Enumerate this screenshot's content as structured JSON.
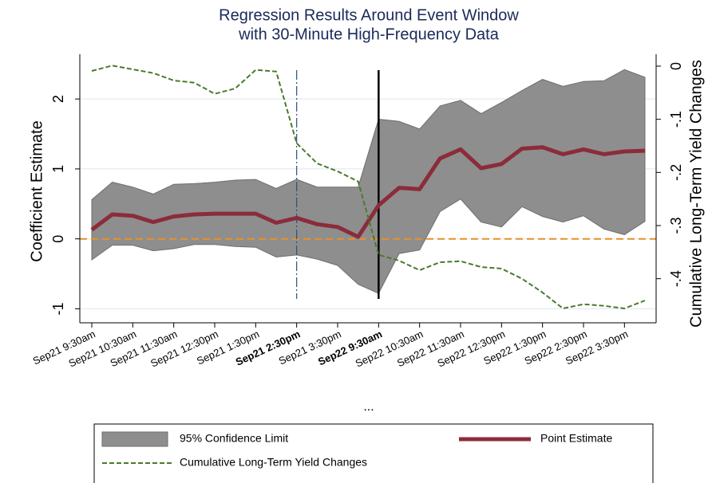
{
  "chart_data": {
    "type": "line",
    "title": [
      "Regression Results Around Event Window",
      "with 30-Minute High-Frequency Data"
    ],
    "y_label": "Coefficient Estimate",
    "y2_label": "Cumulative Long-Term Yield Changes",
    "annotation": "...",
    "categories": [
      "Sep21 9:30am",
      null,
      "Sep21 10:30am",
      null,
      "Sep21 11:30am",
      null,
      "Sep21 12:30pm",
      null,
      "Sep21 1:30pm",
      null,
      "Sep21 2:30pm",
      null,
      "Sep21 3:30pm",
      null,
      "Sep22 9:30am",
      null,
      "Sep22 10:30am",
      null,
      "Sep22 11:30am",
      null,
      "Sep22 12:30pm",
      null,
      "Sep22 1:30pm",
      null,
      "Sep22 2:30pm",
      null,
      "Sep22 3:30pm",
      null
    ],
    "highlight_indices": [
      10,
      14
    ],
    "hline": 0,
    "series": [
      {
        "name": "95% Confidence Limit",
        "color": "#8e8e8e",
        "lower": [
          -0.3,
          -0.09,
          -0.09,
          -0.17,
          -0.14,
          -0.08,
          -0.08,
          -0.11,
          -0.12,
          -0.26,
          -0.23,
          -0.29,
          -0.38,
          -0.65,
          -0.78,
          -0.21,
          -0.16,
          0.39,
          0.57,
          0.24,
          0.17,
          0.46,
          0.32,
          0.24,
          0.33,
          0.14,
          0.06,
          0.25
        ],
        "upper": [
          0.56,
          0.81,
          0.74,
          0.64,
          0.78,
          0.79,
          0.81,
          0.84,
          0.85,
          0.72,
          0.85,
          0.74,
          0.74,
          0.74,
          1.71,
          1.68,
          1.57,
          1.9,
          1.98,
          1.79,
          1.95,
          2.12,
          2.28,
          2.18,
          2.25,
          2.26,
          2.42,
          2.31
        ]
      },
      {
        "name": "Point Estimate",
        "color": "#8b2c3a",
        "values": [
          0.13,
          0.35,
          0.33,
          0.24,
          0.32,
          0.35,
          0.36,
          0.36,
          0.36,
          0.23,
          0.3,
          0.21,
          0.17,
          0.03,
          0.48,
          0.73,
          0.71,
          1.15,
          1.28,
          1.01,
          1.07,
          1.29,
          1.31,
          1.21,
          1.28,
          1.21,
          1.25,
          1.26
        ]
      },
      {
        "name": "Cumulative Long-Term Yield Changes",
        "color": "#4a7a2c",
        "axis": "y2",
        "values": [
          -0.009,
          0.001,
          -0.006,
          -0.013,
          -0.027,
          -0.031,
          -0.052,
          -0.042,
          -0.007,
          -0.01,
          -0.145,
          -0.183,
          -0.198,
          -0.217,
          -0.355,
          -0.366,
          -0.384,
          -0.369,
          -0.367,
          -0.378,
          -0.381,
          -0.4,
          -0.426,
          -0.456,
          -0.448,
          -0.451,
          -0.456,
          -0.441
        ]
      }
    ],
    "ylim": [
      -1.2,
      2.64
    ],
    "yticks": [
      -1,
      0,
      1,
      2
    ],
    "y2lim": [
      -0.483,
      0.0225
    ],
    "y2ticks": [
      {
        "value": 0,
        "label": "0"
      },
      {
        "value": -0.1,
        "label": "-.1"
      },
      {
        "value": -0.2,
        "label": "-.2"
      },
      {
        "value": -0.3,
        "label": "-.3"
      },
      {
        "value": -0.4,
        "label": "-.4"
      }
    ],
    "grid": true,
    "legend": "bottom"
  }
}
